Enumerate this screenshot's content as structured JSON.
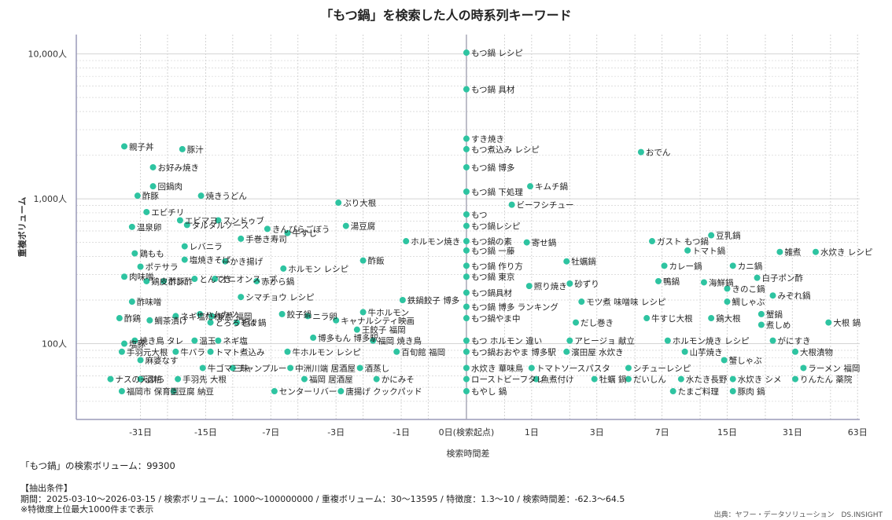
{
  "title": "「もつ鍋」を検索した人の時系列キーワード",
  "total_text": "「もつ鍋」の検索ボリューム：99300",
  "conditions": {
    "heading": "【抽出条件】",
    "body": "期間：2025-03-10〜2026-03-15 / 検索ボリューム：1000〜100000000 / 重複ボリューム：30〜13595 / 特徴度：1.3〜10 / 検索時間差：-62.3〜64.5",
    "note": "※特徴度上位最大1000件まで表示"
  },
  "source": "出典：ヤフー・データソリューション　DS.INSIGHT",
  "colors": {
    "point": "#2ec4a1",
    "axis": "#9a9ab8",
    "grid": "#d4d4d4",
    "zero": "#a8a8b8"
  },
  "chart_data": {
    "type": "scatter",
    "title": "「もつ鍋」を検索した人の時系列キーワード",
    "xlabel": "検索時間差",
    "ylabel": "重複ボリューム",
    "x_scale": "symlog",
    "y_scale": "log",
    "xlim": [
      -62.3,
      64.5
    ],
    "ylim": [
      30,
      13595
    ],
    "x_ticks": [
      {
        "v": -31,
        "label": "-31日"
      },
      {
        "v": -15,
        "label": "-15日"
      },
      {
        "v": -7,
        "label": "-7日"
      },
      {
        "v": -3,
        "label": "-3日"
      },
      {
        "v": -1,
        "label": "-1日"
      },
      {
        "v": 0,
        "label": "0日(検索起点)"
      },
      {
        "v": 1,
        "label": "1日"
      },
      {
        "v": 3,
        "label": "3日"
      },
      {
        "v": 7,
        "label": "7日"
      },
      {
        "v": 15,
        "label": "15日"
      },
      {
        "v": 31,
        "label": "31日"
      },
      {
        "v": 63,
        "label": "63日"
      }
    ],
    "y_ticks": [
      {
        "v": 100,
        "label": "100人"
      },
      {
        "v": 1000,
        "label": "1,000人"
      },
      {
        "v": 10000,
        "label": "10,000人"
      }
    ],
    "grid": true,
    "points": [
      {
        "x": 0,
        "y": 10200,
        "label": "もつ鍋 レシピ"
      },
      {
        "x": 0,
        "y": 5700,
        "label": "もつ鍋 具材"
      },
      {
        "x": 0,
        "y": 2600,
        "label": "すき焼き"
      },
      {
        "x": 0,
        "y": 2200,
        "label": "もつ煮込み レシピ"
      },
      {
        "x": 5.4,
        "y": 2100,
        "label": "おでん"
      },
      {
        "x": 0,
        "y": 1650,
        "label": "もつ鍋 博多"
      },
      {
        "x": 0,
        "y": 1120,
        "label": "もつ鍋 下処理"
      },
      {
        "x": 0.97,
        "y": 1220,
        "label": "キムチ鍋"
      },
      {
        "x": 0.62,
        "y": 910,
        "label": "ビーフシチュー"
      },
      {
        "x": 0,
        "y": 780,
        "label": "もつ"
      },
      {
        "x": 0,
        "y": 650,
        "label": "もつ鍋レシピ"
      },
      {
        "x": 0,
        "y": 510,
        "label": "もつ鍋の素"
      },
      {
        "x": 0.9,
        "y": 500,
        "label": "寄せ鍋"
      },
      {
        "x": 0,
        "y": 440,
        "label": "もつ鍋 一藤"
      },
      {
        "x": 6.2,
        "y": 510,
        "label": "ガスト もつ鍋"
      },
      {
        "x": 12.5,
        "y": 560,
        "label": "豆乳鍋"
      },
      {
        "x": 9.5,
        "y": 440,
        "label": "トマト鍋"
      },
      {
        "x": 27,
        "y": 430,
        "label": "雑煮"
      },
      {
        "x": 40,
        "y": 430,
        "label": "水炊き レシピ"
      },
      {
        "x": 0,
        "y": 345,
        "label": "もつ鍋 作り方"
      },
      {
        "x": 1.9,
        "y": 370,
        "label": "牡蠣鍋"
      },
      {
        "x": 7.2,
        "y": 345,
        "label": "カレー鍋"
      },
      {
        "x": 16,
        "y": 345,
        "label": "カニ鍋"
      },
      {
        "x": 0,
        "y": 290,
        "label": "もつ鍋 東京"
      },
      {
        "x": 0.95,
        "y": 250,
        "label": "照り焼き"
      },
      {
        "x": 2.0,
        "y": 260,
        "label": "砂ずり"
      },
      {
        "x": 6.7,
        "y": 270,
        "label": "鴨鍋"
      },
      {
        "x": 11.5,
        "y": 265,
        "label": "海鮮鍋"
      },
      {
        "x": 21,
        "y": 285,
        "label": "白子ポン酢"
      },
      {
        "x": 15,
        "y": 240,
        "label": "きのこ鍋"
      },
      {
        "x": 0,
        "y": 225,
        "label": "もつ鍋具材"
      },
      {
        "x": 2.4,
        "y": 195,
        "label": "モツ煮 味噌味 レシピ"
      },
      {
        "x": 25,
        "y": 215,
        "label": "みぞれ鍋"
      },
      {
        "x": 15,
        "y": 195,
        "label": "鯛しゃぶ"
      },
      {
        "x": 0,
        "y": 180,
        "label": "もつ鍋 博多 ランキング"
      },
      {
        "x": 0,
        "y": 150,
        "label": "もつ鍋やま中"
      },
      {
        "x": 2.2,
        "y": 140,
        "label": "だし巻き"
      },
      {
        "x": 5.8,
        "y": 150,
        "label": "牛すじ大根"
      },
      {
        "x": 12.5,
        "y": 150,
        "label": "鶏大根"
      },
      {
        "x": 22,
        "y": 160,
        "label": "蟹鍋"
      },
      {
        "x": 22,
        "y": 135,
        "label": "煮しめ"
      },
      {
        "x": 46,
        "y": 140,
        "label": "大根 鍋"
      },
      {
        "x": 0,
        "y": 105,
        "label": "もつ ホルモン 違い"
      },
      {
        "x": 2.0,
        "y": 105,
        "label": "アヒージョ 献立"
      },
      {
        "x": 7.5,
        "y": 105,
        "label": "ホルモン焼き レシピ"
      },
      {
        "x": 25,
        "y": 105,
        "label": "がにすき"
      },
      {
        "x": 0,
        "y": 88,
        "label": "もつ鍋おおやま 博多駅"
      },
      {
        "x": 1.9,
        "y": 88,
        "label": "濱田屋 水炊き"
      },
      {
        "x": 9.2,
        "y": 88,
        "label": "山芋焼き"
      },
      {
        "x": 32,
        "y": 88,
        "label": "大根漬物"
      },
      {
        "x": 14.5,
        "y": 77,
        "label": "蟹しゃぶ"
      },
      {
        "x": 0,
        "y": 68,
        "label": "水炊き 華味鳥"
      },
      {
        "x": 1.0,
        "y": 68,
        "label": "トマトソースパスタ"
      },
      {
        "x": 4.6,
        "y": 68,
        "label": "シチューレシピ"
      },
      {
        "x": 35,
        "y": 68,
        "label": "ラーメン 福岡"
      },
      {
        "x": 0,
        "y": 57,
        "label": "ローストビーフタレ"
      },
      {
        "x": 1.1,
        "y": 57,
        "label": "魚煮付け"
      },
      {
        "x": 2.9,
        "y": 57,
        "label": "牡蠣 鍋"
      },
      {
        "x": 4.6,
        "y": 57,
        "label": "だいしん"
      },
      {
        "x": 8.8,
        "y": 57,
        "label": "水たき長野"
      },
      {
        "x": 16,
        "y": 57,
        "label": "水炊き シメ"
      },
      {
        "x": 32,
        "y": 57,
        "label": "りんたん 薬院"
      },
      {
        "x": 0,
        "y": 47,
        "label": "もやし 鍋"
      },
      {
        "x": 8.0,
        "y": 47,
        "label": "たまご料理"
      },
      {
        "x": 16,
        "y": 47,
        "label": "豚肉 鍋"
      },
      {
        "x": -1.1,
        "y": 88,
        "label": "百旬館 福岡"
      },
      {
        "x": -0.97,
        "y": 200,
        "label": "鉄鍋餃子 博多"
      },
      {
        "x": -0.9,
        "y": 510,
        "label": "ホルモン焼き"
      },
      {
        "x": -1.7,
        "y": 105,
        "label": "福岡 焼き鳥"
      },
      {
        "x": -2.2,
        "y": 125,
        "label": "王餃子 福岡"
      },
      {
        "x": -2.0,
        "y": 165,
        "label": "牛ホルモン"
      },
      {
        "x": -3.0,
        "y": 145,
        "label": "キャナルシティ映画"
      },
      {
        "x": -2.0,
        "y": 375,
        "label": "酢飯"
      },
      {
        "x": -2.6,
        "y": 650,
        "label": "湯豆腐"
      },
      {
        "x": -2.9,
        "y": 940,
        "label": "ぶり大根"
      },
      {
        "x": -2.1,
        "y": 68,
        "label": "酒蒸し"
      },
      {
        "x": -1.6,
        "y": 57,
        "label": "かにみそ"
      },
      {
        "x": -2.8,
        "y": 47,
        "label": "唐揚げ クックパッド"
      },
      {
        "x": -4.1,
        "y": 110,
        "label": "博多もん 博多駅"
      },
      {
        "x": -4.4,
        "y": 155,
        "label": "ニラ卵"
      },
      {
        "x": -6.1,
        "y": 160,
        "label": "餃子鍋"
      },
      {
        "x": -5.7,
        "y": 88,
        "label": "牛ホルモン レシピ"
      },
      {
        "x": -5.5,
        "y": 68,
        "label": "中洲川端 居酒屋"
      },
      {
        "x": -4.6,
        "y": 57,
        "label": "福岡 居酒屋"
      },
      {
        "x": -6.7,
        "y": 47,
        "label": "センターリバー"
      },
      {
        "x": -6.0,
        "y": 330,
        "label": "ホルモン レシピ"
      },
      {
        "x": -5.7,
        "y": 580,
        "label": "牛すじ"
      },
      {
        "x": -7.3,
        "y": 620,
        "label": "きんぴらごぼう"
      },
      {
        "x": -8.3,
        "y": 270,
        "label": "赤から鍋"
      },
      {
        "x": -10.0,
        "y": 210,
        "label": "シマチョウ レシピ"
      },
      {
        "x": -10.0,
        "y": 530,
        "label": "手巻き寿司"
      },
      {
        "x": -10.5,
        "y": 140,
        "label": "坦々鍋"
      },
      {
        "x": -11.0,
        "y": 68,
        "label": "チャンプルー"
      },
      {
        "x": -13.0,
        "y": 710,
        "label": "スンドゥブ"
      },
      {
        "x": -12.0,
        "y": 370,
        "label": "かき揚げ"
      },
      {
        "x": -13.5,
        "y": 280,
        "label": "オニオンスープ"
      },
      {
        "x": -14.0,
        "y": 155,
        "label": "兼虎 福岡"
      },
      {
        "x": -14.2,
        "y": 140,
        "label": "とろろそば"
      },
      {
        "x": -13.0,
        "y": 105,
        "label": "ネギ塩"
      },
      {
        "x": -14.2,
        "y": 88,
        "label": "トマト煮込み"
      },
      {
        "x": -15.5,
        "y": 68,
        "label": "牛ゴマ三昧"
      },
      {
        "x": -17.0,
        "y": 280,
        "label": "とんてき"
      },
      {
        "x": -16.0,
        "y": 160,
        "label": "ハムカツ"
      },
      {
        "x": -17.0,
        "y": 105,
        "label": "温玉"
      },
      {
        "x": -15.8,
        "y": 1050,
        "label": "焼きうどん"
      },
      {
        "x": -18.5,
        "y": 660,
        "label": "タルタルソース"
      },
      {
        "x": -20.0,
        "y": 710,
        "label": "エビマヨ"
      },
      {
        "x": -19.0,
        "y": 470,
        "label": "レバニラ"
      },
      {
        "x": -19.0,
        "y": 380,
        "label": "塩焼きそば"
      },
      {
        "x": -24.0,
        "y": 270,
        "label": "酢豚"
      },
      {
        "x": -21.0,
        "y": 155,
        "label": "ネギ塩だれ"
      },
      {
        "x": -21.0,
        "y": 88,
        "label": "牛バラ"
      },
      {
        "x": -20.5,
        "y": 57,
        "label": "手羽先 大根"
      },
      {
        "x": -21.5,
        "y": 47,
        "label": "豆腐 納豆"
      },
      {
        "x": -19.5,
        "y": 2200,
        "label": "豚汁"
      },
      {
        "x": -27.0,
        "y": 1650,
        "label": "お好み焼き"
      },
      {
        "x": -27.0,
        "y": 1220,
        "label": "回鍋肉"
      },
      {
        "x": -32.0,
        "y": 1050,
        "label": "酢豚"
      },
      {
        "x": -29.0,
        "y": 810,
        "label": "エビチリ"
      },
      {
        "x": -34.0,
        "y": 640,
        "label": "温泉卵"
      },
      {
        "x": -33.0,
        "y": 420,
        "label": "鶏もも"
      },
      {
        "x": -31.0,
        "y": 340,
        "label": "ポテサラ"
      },
      {
        "x": -37.0,
        "y": 290,
        "label": "肉味噌"
      },
      {
        "x": -29.0,
        "y": 270,
        "label": "鶏皮ポン酢"
      },
      {
        "x": -34.0,
        "y": 195,
        "label": "酢味噌"
      },
      {
        "x": -39.0,
        "y": 150,
        "label": "酢鶏"
      },
      {
        "x": -28.0,
        "y": 145,
        "label": "鯛茶漬け"
      },
      {
        "x": -33.0,
        "y": 105,
        "label": "焼き鳥 タレ"
      },
      {
        "x": -37.0,
        "y": 100,
        "label": "塩豚"
      },
      {
        "x": -38.0,
        "y": 88,
        "label": "手羽元大根"
      },
      {
        "x": -31.0,
        "y": 77,
        "label": "麻婆なす"
      },
      {
        "x": -43.0,
        "y": 57,
        "label": "ナスの天ぷら"
      },
      {
        "x": -31.0,
        "y": 57,
        "label": "酒粕"
      },
      {
        "x": -38.0,
        "y": 47,
        "label": "福岡市 保育園"
      },
      {
        "x": -37.0,
        "y": 2300,
        "label": "親子丼"
      }
    ]
  }
}
